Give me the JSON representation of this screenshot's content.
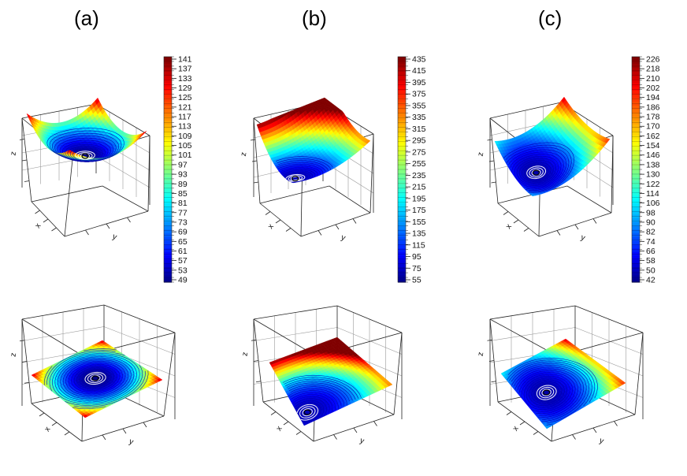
{
  "figure": {
    "panels": [
      {
        "label": "(a)"
      },
      {
        "label": "(b)"
      },
      {
        "label": "(c)"
      }
    ]
  },
  "axis_letters": {
    "x": "x",
    "y": "y",
    "z": "z"
  },
  "chart_data": [
    {
      "type": "surface-3d",
      "panel": "(a)",
      "view": "oblique",
      "surface_shape": "bowl",
      "minimum_location": [
        0.5,
        0.5
      ],
      "xlabel": "x",
      "ylabel": "y",
      "zlabel": "z",
      "colorbar": {
        "ticks": [
          "141",
          "137",
          "133",
          "129",
          "125",
          "121",
          "117",
          "113",
          "109",
          "105",
          "101",
          "97",
          "93",
          "89",
          "85",
          "81",
          "77",
          "73",
          "69",
          "65",
          "61",
          "57",
          "53",
          "49"
        ],
        "range": [
          49,
          141
        ],
        "colormap": "jet"
      }
    },
    {
      "type": "surface-3d",
      "panel": "(a)",
      "view": "top-down",
      "surface_shape": "bowl",
      "minimum_location": [
        0.5,
        0.5
      ],
      "xlabel": "x",
      "ylabel": "y",
      "zlabel": "z"
    },
    {
      "type": "surface-3d",
      "panel": "(b)",
      "view": "oblique",
      "surface_shape": "ridge-valley",
      "minimum_location": [
        0.1,
        0.85
      ],
      "xlabel": "x",
      "ylabel": "y",
      "zlabel": "z",
      "colorbar": {
        "ticks": [
          "435",
          "415",
          "395",
          "375",
          "355",
          "335",
          "315",
          "295",
          "275",
          "255",
          "235",
          "215",
          "195",
          "175",
          "155",
          "135",
          "115",
          "95",
          "75",
          "55"
        ],
        "range": [
          55,
          435
        ],
        "colormap": "jet"
      }
    },
    {
      "type": "surface-3d",
      "panel": "(b)",
      "view": "top-down",
      "surface_shape": "ridge-valley",
      "minimum_location": [
        0.1,
        0.85
      ],
      "xlabel": "x",
      "ylabel": "y",
      "zlabel": "z"
    },
    {
      "type": "surface-3d",
      "panel": "(c)",
      "view": "oblique",
      "surface_shape": "tilted-valley",
      "minimum_location": [
        0.28,
        0.55
      ],
      "xlabel": "x",
      "ylabel": "y",
      "zlabel": "z",
      "colorbar": {
        "ticks": [
          "226",
          "218",
          "210",
          "202",
          "194",
          "186",
          "178",
          "170",
          "162",
          "154",
          "146",
          "138",
          "130",
          "122",
          "114",
          "106",
          "98",
          "90",
          "82",
          "74",
          "66",
          "58",
          "50",
          "42"
        ],
        "range": [
          42,
          226
        ],
        "colormap": "jet"
      }
    },
    {
      "type": "surface-3d",
      "panel": "(c)",
      "view": "top-down",
      "surface_shape": "tilted-valley",
      "minimum_location": [
        0.28,
        0.55
      ],
      "xlabel": "x",
      "ylabel": "y",
      "zlabel": "z"
    }
  ]
}
